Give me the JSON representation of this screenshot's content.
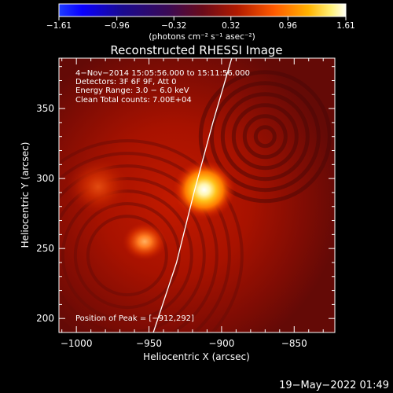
{
  "colorbar": {
    "tick_labels": [
      "−1.61",
      "−0.96",
      "−0.32",
      "0.32",
      "0.96",
      "1.61"
    ],
    "tick_values": [
      -1.61,
      -0.96,
      -0.32,
      0.32,
      0.96,
      1.61
    ],
    "units_text": "(photons cm⁻² s⁻¹ asec⁻²)",
    "range": [
      -1.61,
      1.61
    ]
  },
  "title": "Reconstructed RHESSI Image",
  "annotations": {
    "line1": "4−Nov−2014 15:05:56.000 to 15:11:56.000",
    "line2": "Detectors: 3F 6F 9F, Att 0",
    "line3": "Energy Range: 3.0 − 6.0 keV",
    "line4": "Clean    Total counts: 7.00E+04",
    "peak": "Position of Peak = [−912,292]"
  },
  "footer_date": "19−May−2022 01:49",
  "chart_data": {
    "type": "heatmap",
    "title": "Reconstructed RHESSI Image",
    "xlabel": "Heliocentric X (arcsec)",
    "ylabel": "Heliocentric Y (arcsec)",
    "xlim": [
      -1012,
      -822
    ],
    "ylim": [
      190,
      386
    ],
    "x_ticks": [
      -1000,
      -950,
      -900,
      -850
    ],
    "x_tick_labels": [
      "−1000",
      "−950",
      "−900",
      "−850"
    ],
    "y_ticks": [
      200,
      250,
      300,
      350
    ],
    "y_tick_labels": [
      "200",
      "250",
      "300",
      "350"
    ],
    "peak": [
      -912,
      292
    ],
    "sources": [
      {
        "x": -912,
        "y": 292,
        "intensity": 1.6
      },
      {
        "x": -953,
        "y": 255,
        "intensity": 1.05
      },
      {
        "x": -985,
        "y": 294,
        "intensity": 0.45
      }
    ],
    "limb": [
      [
        -947,
        190
      ],
      [
        -931,
        240
      ],
      [
        -919,
        290
      ],
      [
        -906,
        340
      ],
      [
        -893,
        386
      ]
    ]
  }
}
